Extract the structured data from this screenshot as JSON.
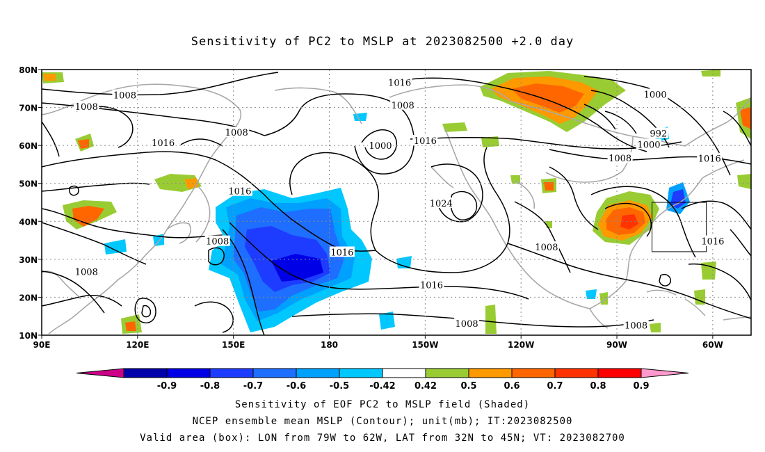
{
  "title": "Sensitivity of PC2 to MSLP at 2023082500 +2.0 day",
  "map": {
    "lon_labels": [
      "90E",
      "120E",
      "150E",
      "180",
      "150W",
      "120W",
      "90W",
      "60W"
    ],
    "lat_labels": [
      "80N",
      "70N",
      "60N",
      "50N",
      "40N",
      "30N",
      "20N",
      "10N"
    ],
    "lon_range": [
      90,
      312
    ],
    "lat_range": [
      10,
      80
    ],
    "grid": "dotted",
    "box": {
      "lon": [
        281,
        298
      ],
      "lat": [
        32,
        45
      ]
    },
    "contour_labels": [
      {
        "text": "1016",
        "lon": 202,
        "lat": 76.6
      },
      {
        "text": "1008",
        "lon": 116,
        "lat": 73.3
      },
      {
        "text": "1008",
        "lon": 104,
        "lat": 70.3
      },
      {
        "text": "1008",
        "lon": 203,
        "lat": 70.7
      },
      {
        "text": "1000",
        "lon": 282,
        "lat": 73.5
      },
      {
        "text": "1008",
        "lon": 151,
        "lat": 63.5
      },
      {
        "text": "992",
        "lon": 283,
        "lat": 63.2
      },
      {
        "text": "1000",
        "lon": 196,
        "lat": 60.0
      },
      {
        "text": "1016",
        "lon": 210,
        "lat": 61.3
      },
      {
        "text": "1000",
        "lon": 280,
        "lat": 60.3
      },
      {
        "text": "1016",
        "lon": 128,
        "lat": 60.8
      },
      {
        "text": "1008",
        "lon": 271,
        "lat": 56.7
      },
      {
        "text": "1016",
        "lon": 299,
        "lat": 56.6
      },
      {
        "text": "1016",
        "lon": 152,
        "lat": 48.0
      },
      {
        "text": "1024",
        "lon": 215,
        "lat": 44.8
      },
      {
        "text": "1008",
        "lon": 145,
        "lat": 34.8
      },
      {
        "text": "1016",
        "lon": 300,
        "lat": 34.8
      },
      {
        "text": "1008",
        "lon": 248,
        "lat": 33.3
      },
      {
        "text": "1016",
        "lon": 184,
        "lat": 31.9
      },
      {
        "text": "1008",
        "lon": 104,
        "lat": 26.8
      },
      {
        "text": "1016",
        "lon": 212,
        "lat": 23.3
      },
      {
        "text": "1008",
        "lon": 223,
        "lat": 13.1
      },
      {
        "text": "1008",
        "lon": 276,
        "lat": 12.7
      }
    ]
  },
  "colorbar": {
    "labels": [
      "-0.9",
      "-0.8",
      "-0.7",
      "-0.6",
      "-0.5",
      "-0.42",
      "0.42",
      "0.5",
      "0.6",
      "0.7",
      "0.8",
      "0.9"
    ],
    "colors": [
      "#cc0088",
      "#0000aa",
      "#0000e6",
      "#1e3cff",
      "#1e6eff",
      "#00a0ff",
      "#00c8ff",
      "#ffffff",
      "#99cc33",
      "#ff9900",
      "#ff6600",
      "#ff3300",
      "#ff0000",
      "#ff99cc"
    ]
  },
  "captions": [
    "Sensitivity of EOF PC2 to MSLP field (Shaded)",
    "NCEP ensemble mean MSLP (Contour); unit(mb); IT:2023082500",
    "Valid area (box): LON from 79W to 62W, LAT from 32N to 45N; VT: 2023082700"
  ]
}
